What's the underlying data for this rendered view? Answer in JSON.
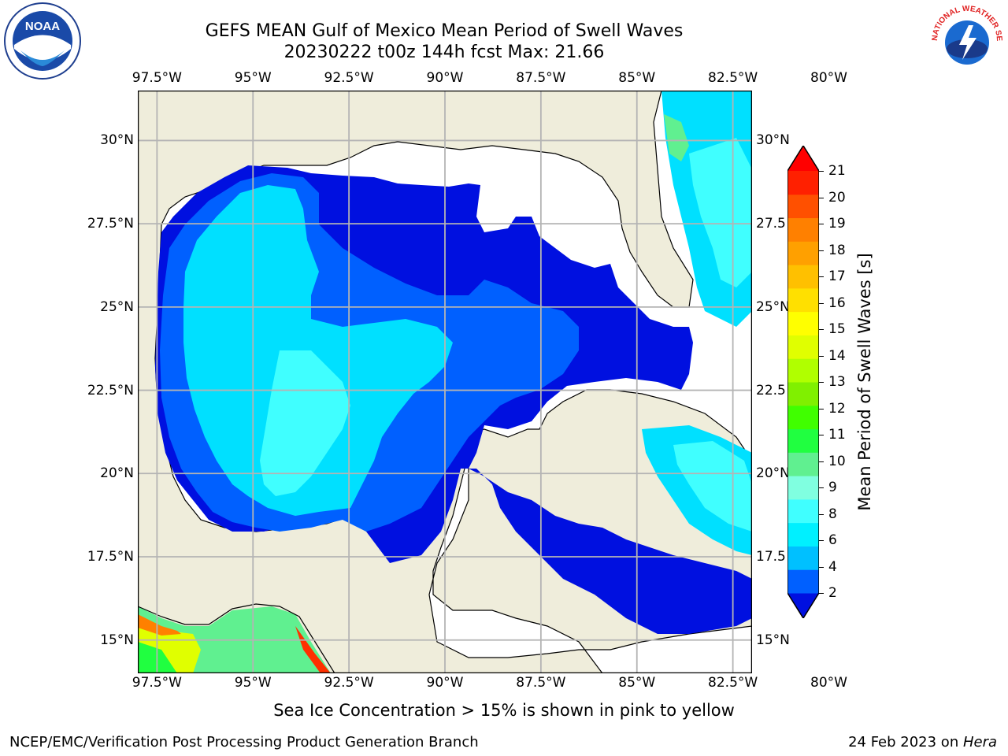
{
  "title": {
    "line1": "GEFS MEAN Gulf of Mexico Mean Period of Swell Waves",
    "line2": "20230222 t00z 144h fcst   Max: 21.66"
  },
  "map": {
    "region": "Gulf of Mexico",
    "lon_range": [
      -98.0,
      -82.0
    ],
    "lat_range": [
      14.0,
      31.5
    ],
    "lon_ticks": [
      "97.5°W",
      "95°W",
      "92.5°W",
      "90°W",
      "87.5°W",
      "85°W",
      "82.5°W",
      "80°W"
    ],
    "lat_ticks_left": [
      "30°N",
      "27.5°N",
      "25°N",
      "22.5°N",
      "20°N",
      "17.5°N",
      "15°N"
    ],
    "lat_ticks_right": [
      "30°N",
      "27.5",
      "25°N",
      "22.5",
      "20°N",
      "17.5",
      "15°N"
    ],
    "land_color": "#efeddb",
    "ocean_nodata_color": "#ffffff",
    "grid_color": "#b4b4b4"
  },
  "colorbar": {
    "label": "Mean Period of Swell Waves [s]",
    "ticks": [
      "21",
      "20",
      "19",
      "18",
      "17",
      "16",
      "15",
      "14",
      "13",
      "12",
      "11",
      "10",
      "9",
      "8",
      "6",
      "4",
      "2"
    ],
    "colors": [
      "#0010e0",
      "#0060ff",
      "#00c0ff",
      "#00f0ff",
      "#40ffff",
      "#80ffe0",
      "#60f090",
      "#20ff40",
      "#40ff00",
      "#80f000",
      "#b0ff00",
      "#e0ff00",
      "#ffff00",
      "#ffe000",
      "#ffc000",
      "#ffa000",
      "#ff8000",
      "#ff5000",
      "#ff2000",
      "#ff0000"
    ],
    "extend": "both"
  },
  "notes": {
    "ice": "Sea Ice Concentration > 15% is shown in pink to yellow",
    "footer_left": "NCEP/EMC/Verification Post Processing Product Generation Branch",
    "footer_date": "24 Feb 2023 on ",
    "footer_host": "Hera"
  },
  "logos": {
    "noaa_text": "NOAA",
    "nws_text": "NATIONAL WEATHER SERVICE"
  }
}
